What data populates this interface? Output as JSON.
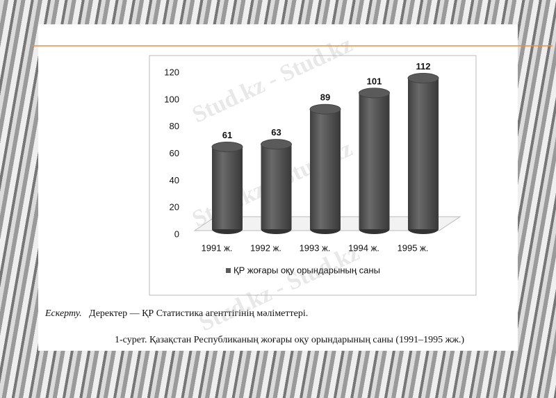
{
  "chart_data": {
    "type": "bar",
    "categories": [
      "1991 ж.",
      "1992 ж.",
      "1993 ж.",
      "1994 ж.",
      "1995 ж."
    ],
    "series": [
      {
        "name": "ҚР жоғары оқу орындарының  саны",
        "color": "#5a5a5a",
        "values": [
          61,
          63,
          89,
          101,
          112
        ]
      }
    ],
    "ylim": [
      0,
      120
    ],
    "yticks": [
      0,
      20,
      40,
      60,
      80,
      100,
      120
    ],
    "grid": false,
    "legend": "bottom",
    "note_label": "Ескерту.",
    "note_text": "Деректер — ҚР Статистика  агенттігінің мәліметтері.",
    "caption": "1-сурет. Қазақстан  Республиканың жоғары оқу орындарының  саны (1991–1995  жж.)",
    "watermark": "Stud.kz - Stud.kz"
  }
}
